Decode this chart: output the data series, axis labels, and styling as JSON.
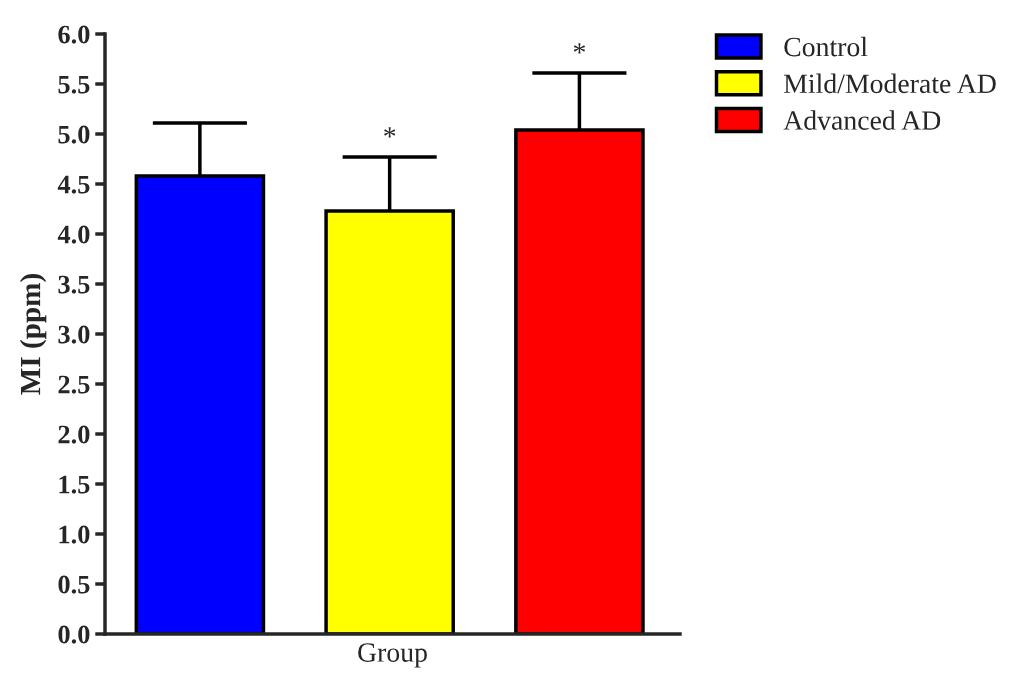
{
  "chart_data": {
    "type": "bar",
    "xlabel": "Group",
    "ylabel": "MI (ppm)",
    "categories": [
      null
    ],
    "series": [
      {
        "name": "Control",
        "color": "#0000ff",
        "values": [
          4.58
        ],
        "errors": [
          0.53
        ]
      },
      {
        "name": "Mild/Moderate AD",
        "color": "#ffff00",
        "values": [
          4.23
        ],
        "errors": [
          0.54
        ],
        "value_labels": [
          "*"
        ]
      },
      {
        "name": "Advanced AD",
        "color": "#ff0000",
        "values": [
          5.04
        ],
        "errors": [
          0.57
        ],
        "value_labels": [
          "*"
        ]
      }
    ],
    "ylim": [
      0,
      6.0
    ],
    "yticks": [
      {
        "value": 0,
        "label": "0.0"
      },
      {
        "value": 0.5,
        "label": "0.5"
      },
      {
        "value": 1,
        "label": "1.0"
      },
      {
        "value": 1.5,
        "label": "1.5"
      },
      {
        "value": 2,
        "label": "2.0"
      },
      {
        "value": 2.5,
        "label": "2.5"
      },
      {
        "value": 3,
        "label": "3.0"
      },
      {
        "value": 3.5,
        "label": "3.5"
      },
      {
        "value": 4,
        "label": "4.0"
      },
      {
        "value": 4.5,
        "label": "4.5"
      },
      {
        "value": 5,
        "label": "5.0"
      },
      {
        "value": 5.5,
        "label": "5.5"
      },
      {
        "value": 6,
        "label": "6.0"
      }
    ],
    "grid": false,
    "legend": "top right"
  }
}
